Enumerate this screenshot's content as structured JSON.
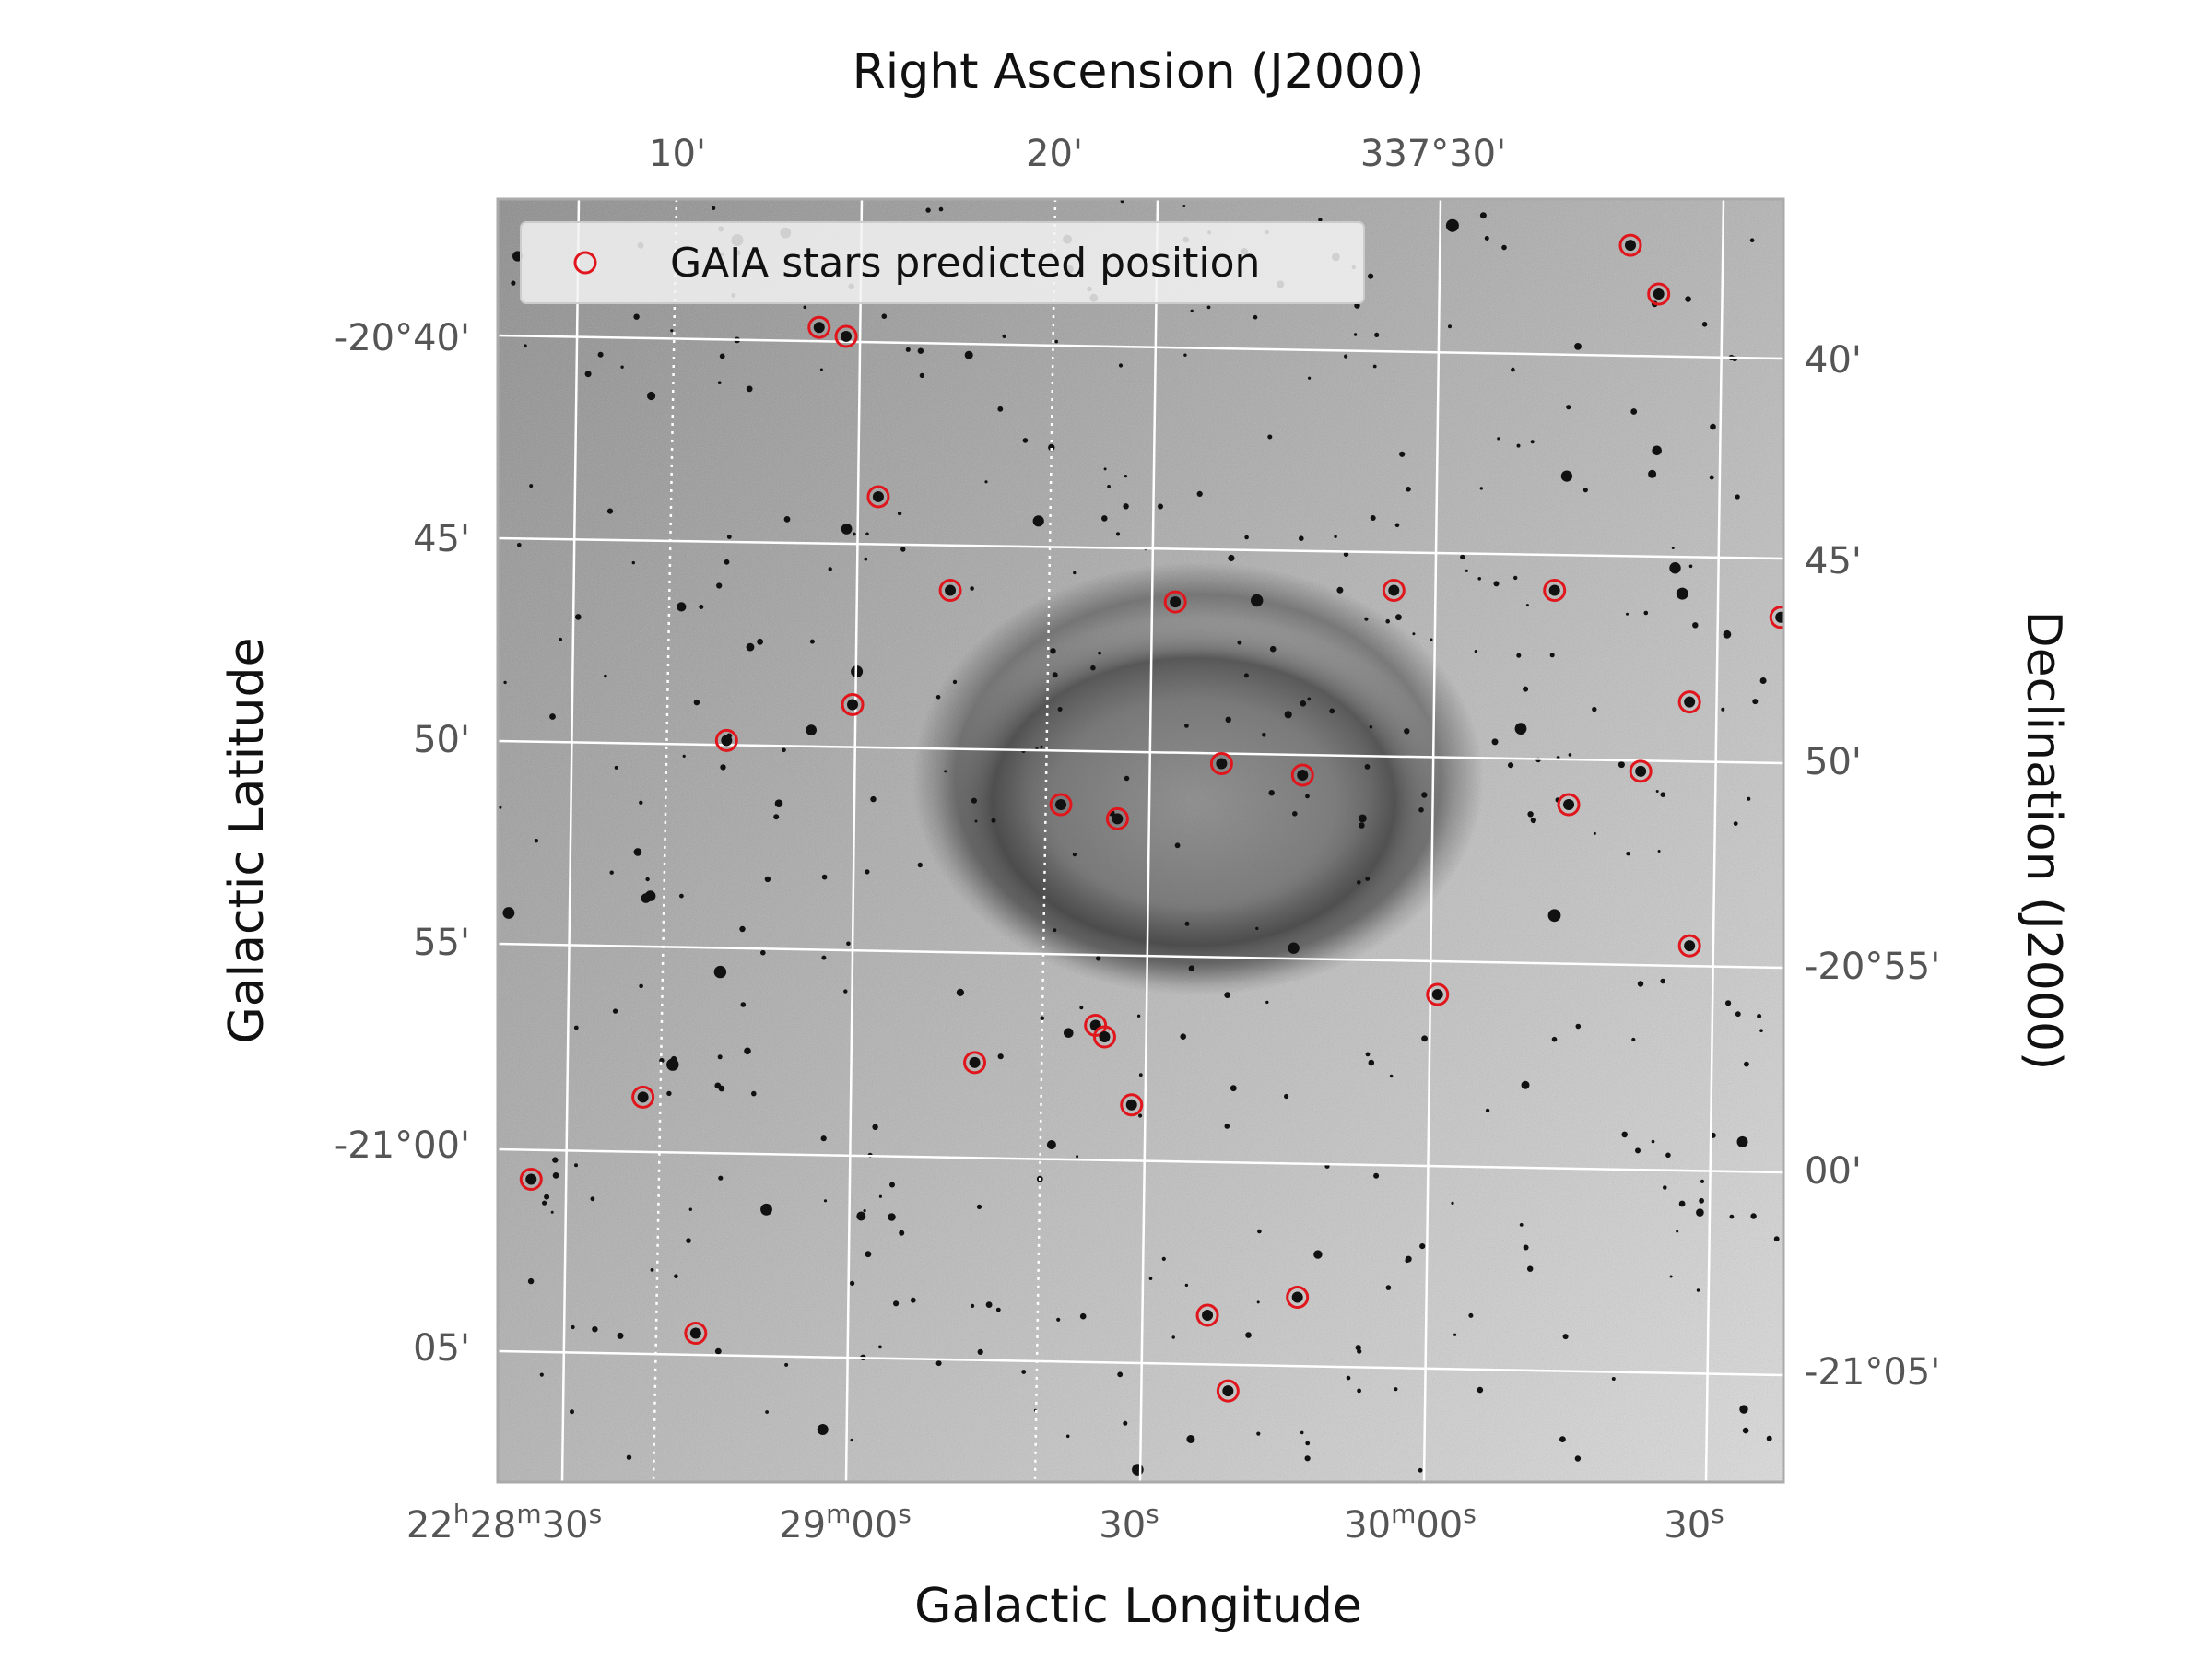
{
  "chart_data": {
    "type": "scatter",
    "description_axes": {
      "top_title": "Right Ascension (J2000)",
      "right_title": "Declination (J2000)",
      "left_title": "Galactic Latitude",
      "bottom_title": "Galactic Longitude"
    },
    "top_ticks": [
      "10'",
      "20'",
      "337°30'"
    ],
    "left_ticks": [
      "-20°40'",
      "45'",
      "50'",
      "55'",
      "-21°00'",
      "05'"
    ],
    "right_ticks": [
      "40'",
      "45'",
      "50'",
      "-20°55'",
      "00'",
      "-21°05'"
    ],
    "bottom_ticks": [
      {
        "base": "22",
        "sup1": "h",
        "mid": "28",
        "sup2": "m",
        "tail": "30",
        "sup3": "s"
      },
      {
        "base": "29",
        "sup1": "m",
        "mid": "00",
        "sup2": "s",
        "tail": "",
        "sup3": ""
      },
      {
        "base": "30",
        "sup1": "s",
        "mid": "",
        "sup2": "",
        "tail": "",
        "sup3": ""
      },
      {
        "base": "30",
        "sup1": "m",
        "mid": "00",
        "sup2": "s",
        "tail": "",
        "sup3": ""
      },
      {
        "base": "30",
        "sup1": "s",
        "mid": "",
        "sup2": "",
        "tail": "",
        "sup3": ""
      }
    ],
    "legend": {
      "label": "GAIA stars predicted position",
      "placement": "top-left",
      "marker_color": "#e0161c"
    },
    "series": [
      {
        "name": "GAIA stars predicted position",
        "marker": "open-circle",
        "color": "#e0161c",
        "points": [
          {
            "x": 0.881,
            "y": 0.036
          },
          {
            "x": 0.903,
            "y": 0.074
          },
          {
            "x": 0.25,
            "y": 0.1
          },
          {
            "x": 0.271,
            "y": 0.107
          },
          {
            "x": 0.296,
            "y": 0.232
          },
          {
            "x": 0.352,
            "y": 0.305
          },
          {
            "x": 0.527,
            "y": 0.314
          },
          {
            "x": 0.697,
            "y": 0.305
          },
          {
            "x": 0.822,
            "y": 0.305
          },
          {
            "x": 0.998,
            "y": 0.326
          },
          {
            "x": 0.276,
            "y": 0.394
          },
          {
            "x": 0.927,
            "y": 0.392
          },
          {
            "x": 0.178,
            "y": 0.422
          },
          {
            "x": 0.563,
            "y": 0.44
          },
          {
            "x": 0.626,
            "y": 0.449
          },
          {
            "x": 0.889,
            "y": 0.446
          },
          {
            "x": 0.438,
            "y": 0.472
          },
          {
            "x": 0.482,
            "y": 0.483
          },
          {
            "x": 0.833,
            "y": 0.472
          },
          {
            "x": 0.927,
            "y": 0.582
          },
          {
            "x": 0.731,
            "y": 0.62
          },
          {
            "x": 0.465,
            "y": 0.644
          },
          {
            "x": 0.472,
            "y": 0.653
          },
          {
            "x": 0.371,
            "y": 0.673
          },
          {
            "x": 0.113,
            "y": 0.7
          },
          {
            "x": 0.493,
            "y": 0.706
          },
          {
            "x": 0.026,
            "y": 0.764
          },
          {
            "x": 0.622,
            "y": 0.856
          },
          {
            "x": 0.552,
            "y": 0.87
          },
          {
            "x": 0.154,
            "y": 0.884
          },
          {
            "x": 0.568,
            "y": 0.929
          }
        ]
      }
    ],
    "grid": true,
    "colors": {
      "marker": "#e0161c",
      "grid": "#ffffff",
      "frame": "#aaaaaa"
    }
  }
}
